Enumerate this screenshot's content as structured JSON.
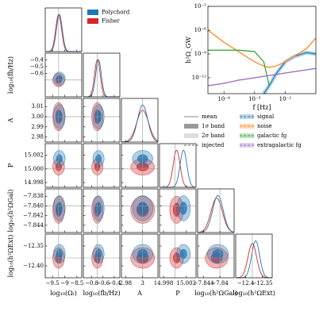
{
  "chart_data": {
    "type": "corner",
    "samplers": [
      {
        "name": "Polychord",
        "color": "#1f77b4",
        "means": [
          -9.22,
          -0.68,
          3.0,
          15.0015,
          -7.8405,
          -12.37
        ],
        "sds": [
          0.12,
          0.05,
          0.006,
          0.0006,
          0.0013,
          0.012
        ]
      },
      {
        "name": "Fisher",
        "color": "#d62728",
        "means": [
          -9.25,
          -0.7,
          3.0,
          15.0003,
          -7.8408,
          -12.38
        ],
        "sds": [
          0.12,
          0.05,
          0.007,
          0.0006,
          0.0014,
          0.013
        ]
      }
    ],
    "parameters": {
      "labels": [
        "log₁₀(Ωₜ)",
        "log₁₀(fb/Hz)",
        "A",
        "P",
        "log₁₀(h²ΩGal)",
        "log₁₀(h²ΩExt)"
      ],
      "lims": [
        [
          -9.8,
          -8.3
        ],
        [
          -0.95,
          -0.3
        ],
        [
          2.975,
          3.018
        ],
        [
          14.9973,
          15.0037
        ],
        [
          -7.8455,
          -7.8365
        ],
        [
          -12.43,
          -12.32
        ]
      ],
      "xticks": [
        [
          {
            "value": -9.5,
            "label": "−9.5"
          },
          {
            "value": -9,
            "label": "−9"
          },
          {
            "value": -8.5,
            "label": "−8.5"
          }
        ],
        [
          {
            "value": -0.8,
            "label": "−0.8"
          },
          {
            "value": -0.6,
            "label": "−0.6"
          },
          {
            "value": -0.4,
            "label": "−0.4"
          }
        ],
        [
          2.98,
          3
        ],
        [
          14.998,
          15.002
        ],
        [
          {
            "value": -7.844,
            "label": "−7.844"
          },
          {
            "value": -7.84,
            "label": "−7.84"
          }
        ],
        [
          {
            "value": -12.4,
            "label": "−12.4"
          },
          {
            "value": -12.35,
            "label": "−12.35"
          }
        ]
      ],
      "yticks": [
        [],
        [
          {
            "value": -0.4,
            "label": "−0.4"
          },
          {
            "value": -0.5,
            "label": "−0.5"
          },
          {
            "value": -0.6,
            "label": "−0.6"
          }
        ],
        [
          3.01,
          {
            "value": 3,
            "label": "3.00"
          },
          2.99,
          2.98
        ],
        [
          15.002,
          {
            "value": 15,
            "label": "15.000"
          },
          14.998
        ],
        [
          {
            "value": -7.838,
            "label": "−7.838"
          },
          {
            "value": -7.84,
            "label": "−7.840"
          },
          {
            "value": -7.842,
            "label": "−7.842"
          },
          {
            "value": -7.844,
            "label": "−7.844"
          }
        ],
        [
          {
            "value": -12.35,
            "label": "−12.35"
          },
          {
            "value": -12.4,
            "label": "−12.40"
          }
        ]
      ],
      "injected": [
        -9.25,
        -0.7,
        3.0,
        15.0,
        -7.84,
        -12.38
      ]
    },
    "spectrum": {
      "type": "line",
      "xlabel": "f [Hz]",
      "ylabel": "h²Ω_GW",
      "log": true,
      "xlim": [
        3e-05,
        0.1
      ],
      "ylim": [
        1e-14,
        0.001
      ],
      "xticks": [
        {
          "value": 0.0001,
          "label": "10⁻⁴"
        },
        {
          "value": 0.001,
          "label": "10⁻³"
        },
        {
          "value": 0.01,
          "label": "10⁻²"
        }
      ],
      "yticks": [
        {
          "value": 1e-12,
          "label": "10⁻¹²"
        },
        {
          "value": 1e-09,
          "label": "10⁻⁹"
        },
        {
          "value": 1e-06,
          "label": "10⁻⁶"
        },
        {
          "value": 0.001,
          "label": "10⁻³"
        }
      ],
      "x": [
        3e-05,
        0.0001,
        0.0003,
        0.001,
        0.002,
        0.003,
        0.005,
        0.01,
        0.02,
        0.05,
        0.1
      ],
      "series": [
        {
          "name": "signal",
          "color": "#1f77b4",
          "values": [
            null,
            null,
            null,
            null,
            1e-14,
            1e-13,
            3e-12,
            1e-10,
            5e-10,
            1.5e-09,
            1e-09
          ]
        },
        {
          "name": "noise",
          "color": "#ff7f0e",
          "values": [
            1e-06,
            3e-08,
            2e-09,
            1e-10,
            3e-11,
            2e-11,
            3e-11,
            1e-10,
            5e-10,
            5e-09,
            1e-07
          ]
        },
        {
          "name": "galactic fg",
          "color": "#2ca02c",
          "values": [
            3e-09,
            3e-09,
            3e-09,
            2e-09,
            1e-10,
            1e-13,
            null,
            null,
            null,
            null,
            null
          ]
        },
        {
          "name": "extragalactic fg",
          "color": "#9467bd",
          "values": [
            1e-13,
            2e-13,
            5e-13,
            1e-12,
            1.5e-12,
            2e-12,
            2.5e-12,
            4e-12,
            6e-12,
            1e-11,
            1.5e-11
          ]
        }
      ]
    },
    "legend": {
      "mean": "mean",
      "band1": "1σ band",
      "band2": "2σ band",
      "injected": "injected"
    }
  }
}
